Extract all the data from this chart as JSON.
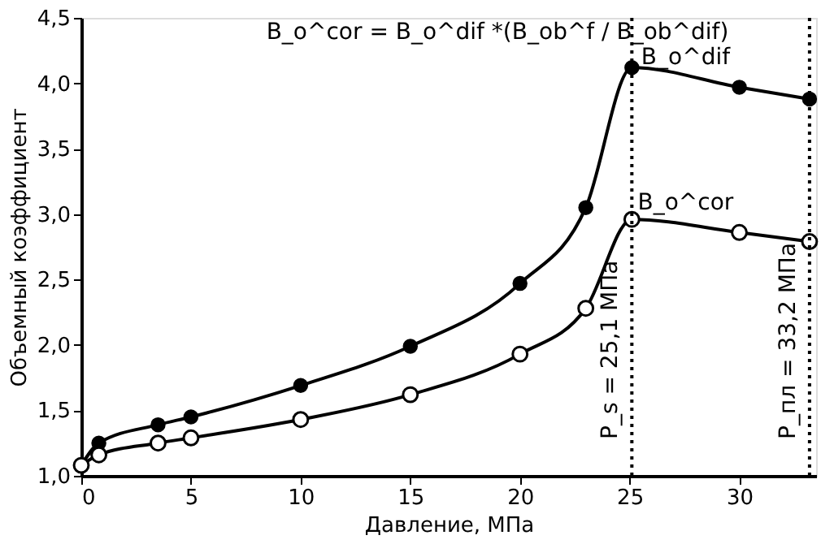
{
  "chart_data": {
    "type": "line",
    "title": "B_o^cor = B_o^dif *(B_ob^f / B_ob^dif)",
    "xlabel": "Давление, МПа",
    "ylabel": "Объемный коэффициент",
    "series": [
      {
        "name": "B_o^dif",
        "color": "#000000",
        "x": [
          0,
          0.8,
          3.5,
          5,
          10,
          15,
          20,
          23,
          25.1,
          30,
          33.2
        ],
        "values": [
          1.08,
          1.25,
          1.39,
          1.45,
          1.69,
          1.99,
          2.47,
          3.05,
          4.12,
          3.97,
          3.88
        ]
      },
      {
        "name": "B_o^cor",
        "color": "#000000",
        "x": [
          0,
          0.8,
          3.5,
          5,
          10,
          15,
          20,
          23,
          25.1,
          30,
          33.2
        ],
        "values": [
          1.08,
          1.16,
          1.25,
          1.29,
          1.43,
          1.62,
          1.93,
          2.28,
          2.96,
          2.86,
          2.79
        ]
      }
    ],
    "xlim": [
      0,
      33.5
    ],
    "xticks": [
      0,
      5,
      10,
      15,
      20,
      25,
      30
    ],
    "ylim": [
      1.0,
      4.5
    ],
    "yticks": [
      {
        "value": 1.0,
        "label": "1,0"
      },
      {
        "value": 1.5,
        "label": "1,5"
      },
      {
        "value": 2.0,
        "label": "2,0"
      },
      {
        "value": 2.5,
        "label": "2,5"
      },
      {
        "value": 3.0,
        "label": "3,0"
      },
      {
        "value": 3.5,
        "label": "3,5"
      },
      {
        "value": 4.0,
        "label": "4,0"
      },
      {
        "value": 4.5,
        "label": "4,5"
      }
    ],
    "ref_lines": [
      {
        "axis": "x",
        "value": 25.1,
        "label": "P_s = 25,1 МПа",
        "line_style": "dotted"
      },
      {
        "axis": "x",
        "value": 33.2,
        "label": "P_пл = 33,2 МПа",
        "line_style": "dotted"
      }
    ],
    "marker": "circle",
    "line_style": "solid",
    "grid": false
  }
}
